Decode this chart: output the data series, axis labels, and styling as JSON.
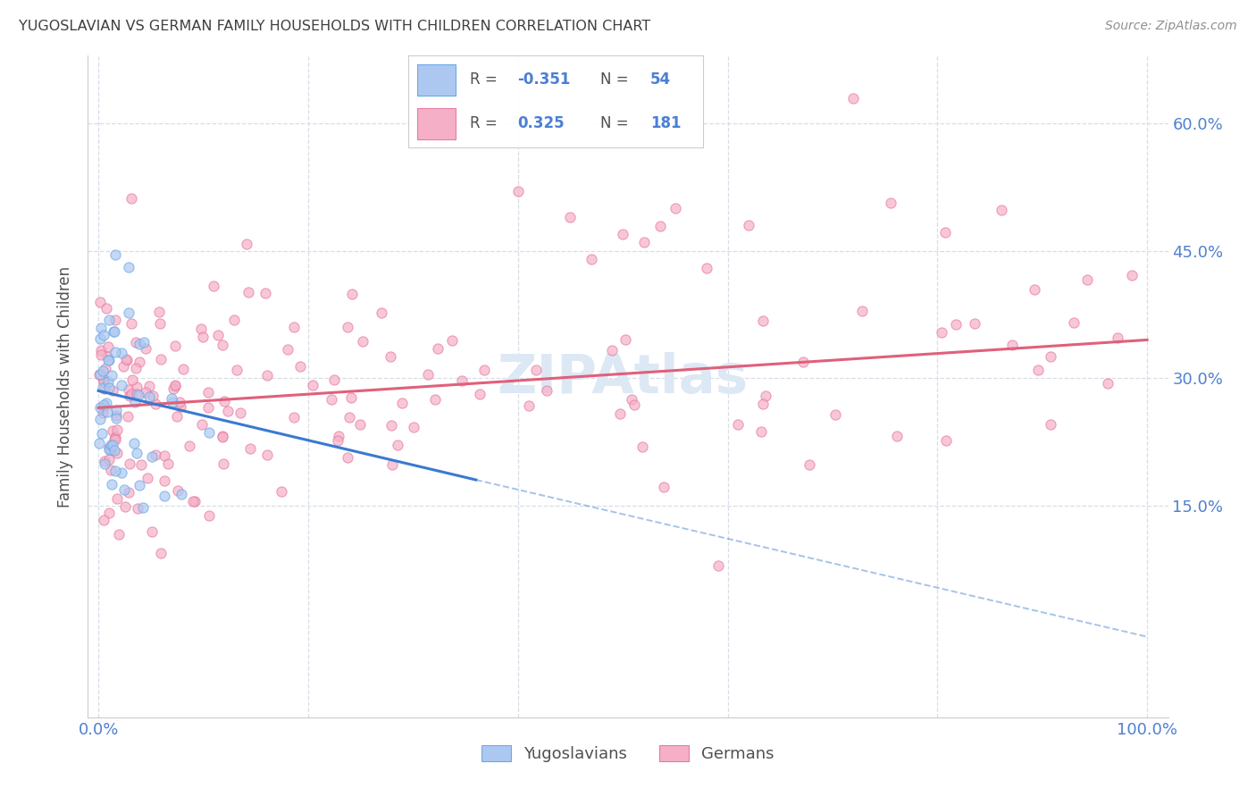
{
  "title": "YUGOSLAVIAN VS GERMAN FAMILY HOUSEHOLDS WITH CHILDREN CORRELATION CHART",
  "source": "Source: ZipAtlas.com",
  "ylabel": "Family Households with Children",
  "legend_label1": "Yugoslavians",
  "legend_label2": "Germans",
  "yugo_fill_color": "#adc8f0",
  "yugo_edge_color": "#6aaae8",
  "german_fill_color": "#f5b0c8",
  "german_edge_color": "#e87aa0",
  "yugo_trend_color": "#3a7ad0",
  "german_trend_color": "#e0607a",
  "background_color": "#ffffff",
  "grid_color": "#d8dde8",
  "ytick_color": "#5080d0",
  "xtick_color": "#5080d0",
  "title_color": "#404040",
  "source_color": "#909090",
  "watermark_color": "#dde8f5",
  "ylabel_color": "#505050",
  "legend_text_color": "#505050",
  "legend_num_color": "#4a7fd4",
  "yugo_R": -0.351,
  "yugo_N": 54,
  "german_R": 0.325,
  "german_N": 181,
  "xlim": [
    -1,
    102
  ],
  "ylim": [
    -10,
    68
  ],
  "ytick_vals": [
    15,
    30,
    45,
    60
  ],
  "ytick_labels": [
    "15.0%",
    "30.0%",
    "45.0%",
    "60.0%"
  ],
  "xtick_vals": [
    0,
    100
  ],
  "xtick_labels": [
    "0.0%",
    "100.0%"
  ],
  "x_grid_vals": [
    0,
    20,
    40,
    60,
    80,
    100
  ],
  "yugo_trend_x0": 0,
  "yugo_trend_x1": 36,
  "yugo_trend_y0": 28.5,
  "yugo_trend_y1": 18.0,
  "yugo_dash_x0": 36,
  "yugo_dash_x1": 100,
  "yugo_dash_y0": 18.0,
  "yugo_dash_y1": -0.5,
  "german_trend_x0": 0,
  "german_trend_x1": 100,
  "german_trend_y0": 26.5,
  "german_trend_y1": 34.5,
  "marker_size": 65,
  "marker_alpha": 0.7,
  "trend_linewidth": 2.2
}
